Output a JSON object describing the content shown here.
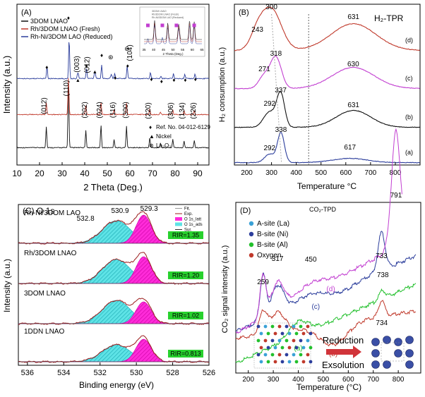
{
  "chart_data": [
    {
      "panel": "(A)",
      "type": "line",
      "xlabel": "2 Theta (Deg.)",
      "ylabel": "Intensity (a.u.)",
      "x_range": [
        10,
        95
      ],
      "x_ticks": [
        10,
        20,
        30,
        40,
        50,
        60,
        70,
        80,
        90
      ],
      "series": [
        {
          "name": "3DOM LNAO",
          "color": "#111111",
          "peaks": [
            23,
            32.8,
            40.5,
            47.2,
            53,
            58.5,
            68.8,
            73.5,
            79,
            84,
            88.5
          ]
        },
        {
          "name": "Rh/3DOM LNAO (Fresh)",
          "color": "#c0392b",
          "peaks": [
            23,
            32.8,
            40.5,
            47.2,
            53,
            58.5,
            68.8,
            79,
            84,
            88.5
          ]
        },
        {
          "name": "Rh-Ni/3DOM LAO (Reduced)",
          "color": "#2c3e9c",
          "peaks": [
            23.4,
            33,
            37,
            40.8,
            44.5,
            47.5,
            51.8,
            53.5,
            59,
            69.5,
            79.5,
            84.5,
            89
          ]
        }
      ],
      "peak_labels": [
        "(012)",
        "(110)",
        "(202)",
        "(024)",
        "(116)",
        "(300)",
        "(220)",
        "(306)",
        "(134)",
        "(226)"
      ],
      "top_labels": [
        "(003)",
        "(012)",
        "(104)"
      ],
      "annotations": [
        "Ref. No. 04-012-6129",
        "Nickel",
        "La₂O₃"
      ],
      "inset": {
        "xlabel": "2 Theta (Deg.)",
        "x_ticks": [
          35,
          40,
          45,
          50,
          55,
          60,
          65
        ],
        "legend": [
          "3DOM LNAO",
          "Rh/3DOM LNAO (Fresh)",
          "Rh-Ni/3DOM LAO (Reduced)"
        ]
      }
    },
    {
      "panel": "(B)",
      "title": "H₂-TPR",
      "type": "line",
      "xlabel": "Temperature °C",
      "ylabel": "H₂ consumption (a.u.)",
      "x_range": [
        150,
        900
      ],
      "x_ticks": [
        200,
        300,
        400,
        500,
        600,
        700,
        800
      ],
      "series": [
        {
          "name": "(d)",
          "color": "#c0392b",
          "peaks": [
            [
              243,
              0
            ],
            [
              300,
              0
            ],
            [
              631,
              0
            ]
          ]
        },
        {
          "name": "(c)",
          "color": "#c23fd1",
          "peaks": [
            [
              271,
              0
            ],
            [
              318,
              0
            ],
            [
              630,
              0
            ]
          ]
        },
        {
          "name": "(b)",
          "color": "#111111",
          "peaks": [
            [
              292,
              0
            ],
            [
              337,
              0
            ],
            [
              631,
              0
            ]
          ]
        },
        {
          "name": "(a)",
          "color": "#2c3e9c",
          "peaks": [
            [
              292,
              0
            ],
            [
              338,
              0
            ],
            [
              617,
              0
            ]
          ]
        }
      ],
      "vertical_line": 450
    },
    {
      "panel": "(C) O 1s",
      "type": "line",
      "xlabel": "Binding energy (eV)",
      "ylabel": "Intensity (a.u.)",
      "x_range": [
        536.5,
        526
      ],
      "x_ticks": [
        536,
        534,
        532,
        530,
        528,
        526
      ],
      "legend": [
        "Fit.",
        "Exp.",
        "O 1s_latt",
        "O 1s_ads",
        "Sur."
      ],
      "samples": [
        {
          "name": "Rh-Ni/3DOM LAO",
          "rir": "RIR=1.35"
        },
        {
          "name": "Rh/3DOM LNAO",
          "rir": "RIR=1.20"
        },
        {
          "name": "3DOM LNAO",
          "rir": "RIR=1.02"
        },
        {
          "name": "1DDN LNAO",
          "rir": "RIR=0.813"
        }
      ],
      "peak_labels": [
        "532.8",
        "530.9",
        "529.3"
      ]
    },
    {
      "panel": "(D)",
      "title": "CO₂-TPD",
      "type": "line",
      "xlabel": "Temperature (°C)",
      "ylabel": "CO₂ signal intensity (a.u.)",
      "x_range": [
        150,
        890
      ],
      "x_ticks": [
        200,
        300,
        400,
        500,
        600,
        700,
        800
      ],
      "series": [
        {
          "name": "(a)",
          "color": "#22c02c"
        },
        {
          "name": "(b)",
          "color": "#c0392b"
        },
        {
          "name": "(c)",
          "color": "#2c3e9c"
        },
        {
          "name": "(d)",
          "color": "#c23fd1"
        }
      ],
      "peak_labels": [
        "259",
        "317",
        "450",
        "733",
        "738",
        "734",
        "791"
      ],
      "legend": [
        "A-site (La)",
        "B-site (Ni)",
        "B-site (Al)",
        "Oxygen"
      ],
      "scheme": [
        "Reduction",
        "Exsolution"
      ]
    }
  ]
}
